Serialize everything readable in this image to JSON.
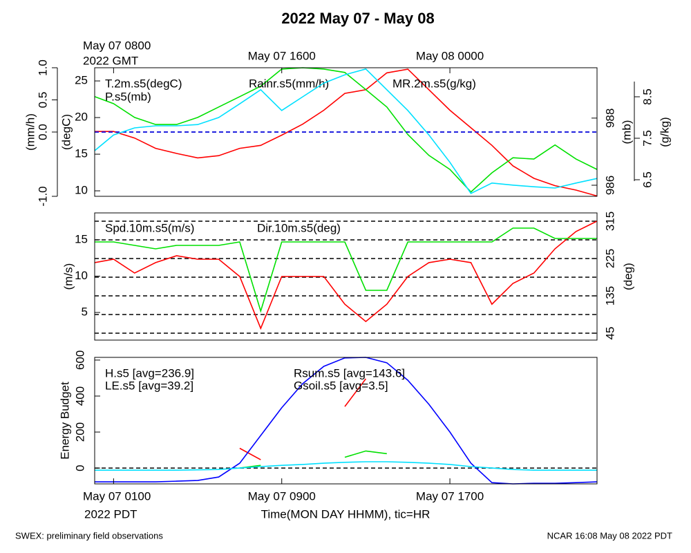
{
  "title": "2022 May 07 - May 08",
  "footer_left": "SWEX: preliminary field observations",
  "footer_right": "NCAR 16:08 May 08 2022 PDT",
  "chart_data": [
    {
      "type": "line",
      "xlim": [
        -0.9,
        23
      ],
      "x2ticks": [
        {
          "value": 0,
          "label": "May 07 0800"
        },
        {
          "value": 8,
          "label": "May 07 1600"
        },
        {
          "value": 16,
          "label": "May 08 0000"
        }
      ],
      "x2sublabel": "2022 GMT",
      "x": [
        -0.9,
        0,
        1,
        2,
        3,
        4,
        5,
        6,
        7,
        8,
        9,
        10,
        11,
        12,
        13,
        14,
        15,
        16,
        17,
        18,
        19,
        20,
        21,
        22,
        23
      ],
      "axes": [
        {
          "label": "(mm/h)",
          "lim": [
            -1,
            1
          ],
          "ticks": [
            {
              "value": -1,
              "label": "-1.0"
            },
            {
              "value": 0,
              "label": "0.0"
            },
            0.5,
            {
              "value": 1,
              "label": "1.0"
            }
          ]
        },
        {
          "label": "(degC)",
          "lim": [
            9.25,
            26.8
          ],
          "ticks": [
            10,
            15,
            20,
            25
          ]
        },
        {
          "label": "(mb)",
          "lim": [
            985.67,
            989.5
          ],
          "ticks": [
            986,
            988
          ]
        },
        {
          "label": "(g/kg)",
          "lim": [
            6.1,
            9.2
          ],
          "ticks": [
            6.5,
            7.5,
            8.5
          ]
        }
      ],
      "gridlines": {
        "axis": 0,
        "values": [
          0
        ]
      },
      "series": [
        {
          "name": "T.2m.s5(degC)",
          "color": "#ff0000",
          "axis": 1,
          "values": [
            18.1,
            18.1,
            17.2,
            15.8,
            15.1,
            14.5,
            14.8,
            15.8,
            16.2,
            17.6,
            19.1,
            21.0,
            23.3,
            23.8,
            26.1,
            26.6,
            23.8,
            21.0,
            18.6,
            16.2,
            13.4,
            11.7,
            10.7,
            10.1,
            9.3
          ]
        },
        {
          "name": "P.s5(mb)",
          "color": "#00e000",
          "axis": 2,
          "values": [
            988.64,
            988.43,
            988.02,
            987.81,
            987.81,
            988.02,
            988.33,
            988.64,
            988.95,
            989.46,
            989.5,
            989.46,
            989.36,
            988.85,
            988.33,
            987.51,
            986.89,
            986.47,
            985.8,
            986.37,
            986.82,
            986.78,
            987.2,
            986.78,
            986.47
          ]
        },
        {
          "name": "Rainr.s5(mm/h)",
          "color": "#0000ff",
          "axis": 0,
          "dashed": true,
          "values": [
            0,
            0,
            0,
            0,
            0,
            0,
            0,
            0,
            0,
            0,
            0,
            0,
            0,
            0,
            0,
            0,
            0,
            0,
            0,
            0,
            0,
            0,
            0,
            0,
            0
          ]
        },
        {
          "name": "MR.2m.s5(g/kg)",
          "color": "#00e0ff",
          "axis": 3,
          "values": [
            7.2,
            7.58,
            7.75,
            7.8,
            7.8,
            7.83,
            8.0,
            8.33,
            8.67,
            8.17,
            8.5,
            8.83,
            9.03,
            9.17,
            8.67,
            8.17,
            7.58,
            6.92,
            6.17,
            6.42,
            6.37,
            6.33,
            6.3,
            6.42,
            6.53
          ]
        }
      ]
    },
    {
      "type": "line",
      "xlim": [
        -0.9,
        23
      ],
      "x": [
        -0.9,
        0,
        1,
        2,
        3,
        4,
        5,
        6,
        7,
        8,
        9,
        10,
        11,
        12,
        13,
        14,
        15,
        16,
        17,
        18,
        19,
        20,
        21,
        22,
        23
      ],
      "axes": [
        {
          "label": "(m/s)",
          "lim": [
            1.2,
            18.7
          ],
          "ticks": [
            5,
            10,
            15
          ]
        },
        {
          "label": "(deg)",
          "lim": [
            28.3,
            335
          ],
          "ticks": [
            45,
            135,
            225,
            315
          ]
        }
      ],
      "gridlines": {
        "axis": 1,
        "values": [
          45,
          90,
          135,
          180,
          225,
          270,
          315
        ]
      },
      "series": [
        {
          "name": "Spd.10m.s5(m/s)",
          "color": "#ff0000",
          "axis": 0,
          "values": [
            11.86,
            12.33,
            10.43,
            11.86,
            12.81,
            12.33,
            12.33,
            9.95,
            2.81,
            9.95,
            9.95,
            9.95,
            6.14,
            3.76,
            6.14,
            9.95,
            11.86,
            12.33,
            11.86,
            6.14,
            9.0,
            10.43,
            13.76,
            16.14,
            17.57
          ]
        },
        {
          "name": "Dir.10m.s5(deg)",
          "color": "#00e000",
          "axis": 1,
          "values": [
            265,
            265,
            256.7,
            248.3,
            256.7,
            256.7,
            256.7,
            265,
            98.3,
            265,
            265,
            265,
            265,
            148.3,
            148.3,
            265,
            265,
            265,
            265,
            265,
            298.3,
            298.3,
            273.3,
            273.3,
            273.3
          ]
        }
      ]
    },
    {
      "type": "line",
      "xlim": [
        -0.9,
        23
      ],
      "xticks": [
        {
          "value": 0,
          "label": "May 07 0100"
        },
        {
          "value": 8,
          "label": "May 07 0900"
        },
        {
          "value": 16,
          "label": "May 07 1700"
        }
      ],
      "xsublabel": "2022 PDT",
      "xlabel": "Time(MON DAY HHMM), tic=HR",
      "x": [
        -0.9,
        0,
        1,
        2,
        3,
        4,
        5,
        6,
        7,
        8,
        9,
        10,
        11,
        12,
        13,
        14,
        15,
        16,
        17,
        18,
        19,
        20,
        21,
        22,
        23
      ],
      "axes": [
        {
          "label": "Energy Budget",
          "lim": [
            -88,
            615
          ],
          "ticks": [
            0,
            200,
            400,
            600
          ]
        }
      ],
      "gridlines": {
        "axis": 0,
        "values": [
          0
        ]
      },
      "series": [
        {
          "name": "H.s5 [avg=236.9]",
          "color": "#ff0000",
          "axis": 0,
          "values": [
            null,
            null,
            null,
            null,
            null,
            null,
            null,
            110,
            46,
            null,
            null,
            null,
            342,
            496,
            null,
            null,
            null,
            null,
            null,
            null,
            null,
            null,
            null,
            null,
            null
          ]
        },
        {
          "name": "LE.s5 [avg=39.2]",
          "color": "#00e000",
          "axis": 0,
          "values": [
            null,
            null,
            null,
            null,
            null,
            null,
            null,
            0,
            15,
            null,
            null,
            null,
            60,
            95,
            80,
            null,
            null,
            null,
            null,
            null,
            null,
            null,
            null,
            null,
            null
          ]
        },
        {
          "name": "Rsum.s5 [avg=143.6]",
          "color": "#0000ff",
          "axis": 0,
          "values": [
            -77,
            -77,
            -77,
            -77,
            -73,
            -69,
            -50,
            27,
            181,
            335,
            469,
            565,
            612,
            615,
            585,
            488,
            354,
            200,
            27,
            -81,
            -88,
            -85,
            -85,
            -81,
            -77
          ]
        },
        {
          "name": "Gsoil.s5 [avg=3.5]",
          "color": "#00e0ff",
          "axis": 0,
          "values": [
            -12,
            -12,
            -12,
            -12,
            -12,
            -10,
            -8,
            0,
            8,
            15,
            20,
            27,
            32,
            35,
            35,
            32,
            27,
            20,
            8,
            0,
            -8,
            -12,
            -12,
            -12,
            -12
          ]
        }
      ]
    }
  ]
}
